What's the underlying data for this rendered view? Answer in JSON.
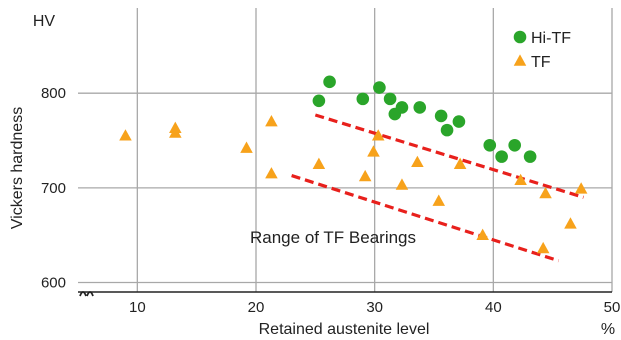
{
  "chart_data": {
    "type": "scatter",
    "unit_y": "HV",
    "unit_x": "%",
    "xlabel": "Retained austenite level",
    "ylabel": "Vickers hardness",
    "xlim": [
      5,
      50
    ],
    "ylim": [
      590,
      890
    ],
    "x_ticks": [
      10,
      20,
      30,
      40,
      50
    ],
    "y_ticks": [
      600,
      700,
      800
    ],
    "grid": true,
    "legend_position": "top-right",
    "series": [
      {
        "name": "Hi-TF",
        "marker": "circle",
        "color": "#2aa52a",
        "points": [
          [
            25.3,
            792
          ],
          [
            26.2,
            812
          ],
          [
            29.0,
            794
          ],
          [
            30.4,
            806
          ],
          [
            31.3,
            794
          ],
          [
            31.7,
            778
          ],
          [
            32.3,
            785
          ],
          [
            33.8,
            785
          ],
          [
            35.6,
            776
          ],
          [
            36.1,
            761
          ],
          [
            37.1,
            770
          ],
          [
            39.7,
            745
          ],
          [
            40.7,
            733
          ],
          [
            41.8,
            745
          ],
          [
            43.1,
            733
          ]
        ]
      },
      {
        "name": "TF",
        "marker": "triangle",
        "color": "#f7a21b",
        "points": [
          [
            9.0,
            755
          ],
          [
            13.2,
            758
          ],
          [
            13.2,
            763
          ],
          [
            19.2,
            742
          ],
          [
            21.3,
            770
          ],
          [
            21.3,
            715
          ],
          [
            25.3,
            725
          ],
          [
            29.2,
            712
          ],
          [
            29.9,
            738
          ],
          [
            30.3,
            755
          ],
          [
            32.3,
            703
          ],
          [
            33.6,
            727
          ],
          [
            35.4,
            686
          ],
          [
            37.2,
            725
          ],
          [
            39.1,
            650
          ],
          [
            42.3,
            708
          ],
          [
            44.2,
            636
          ],
          [
            44.4,
            694
          ],
          [
            46.5,
            662
          ],
          [
            47.4,
            699
          ]
        ]
      }
    ],
    "trend_lines": [
      {
        "from": [
          25.0,
          777
        ],
        "to": [
          47.6,
          690
        ]
      },
      {
        "from": [
          23.0,
          713
        ],
        "to": [
          45.5,
          623
        ]
      }
    ],
    "annotation": "Range of TF Bearings",
    "colors": {
      "grid": "#a8a8a8",
      "trend": "#e8201c",
      "axis": "#222222"
    }
  }
}
